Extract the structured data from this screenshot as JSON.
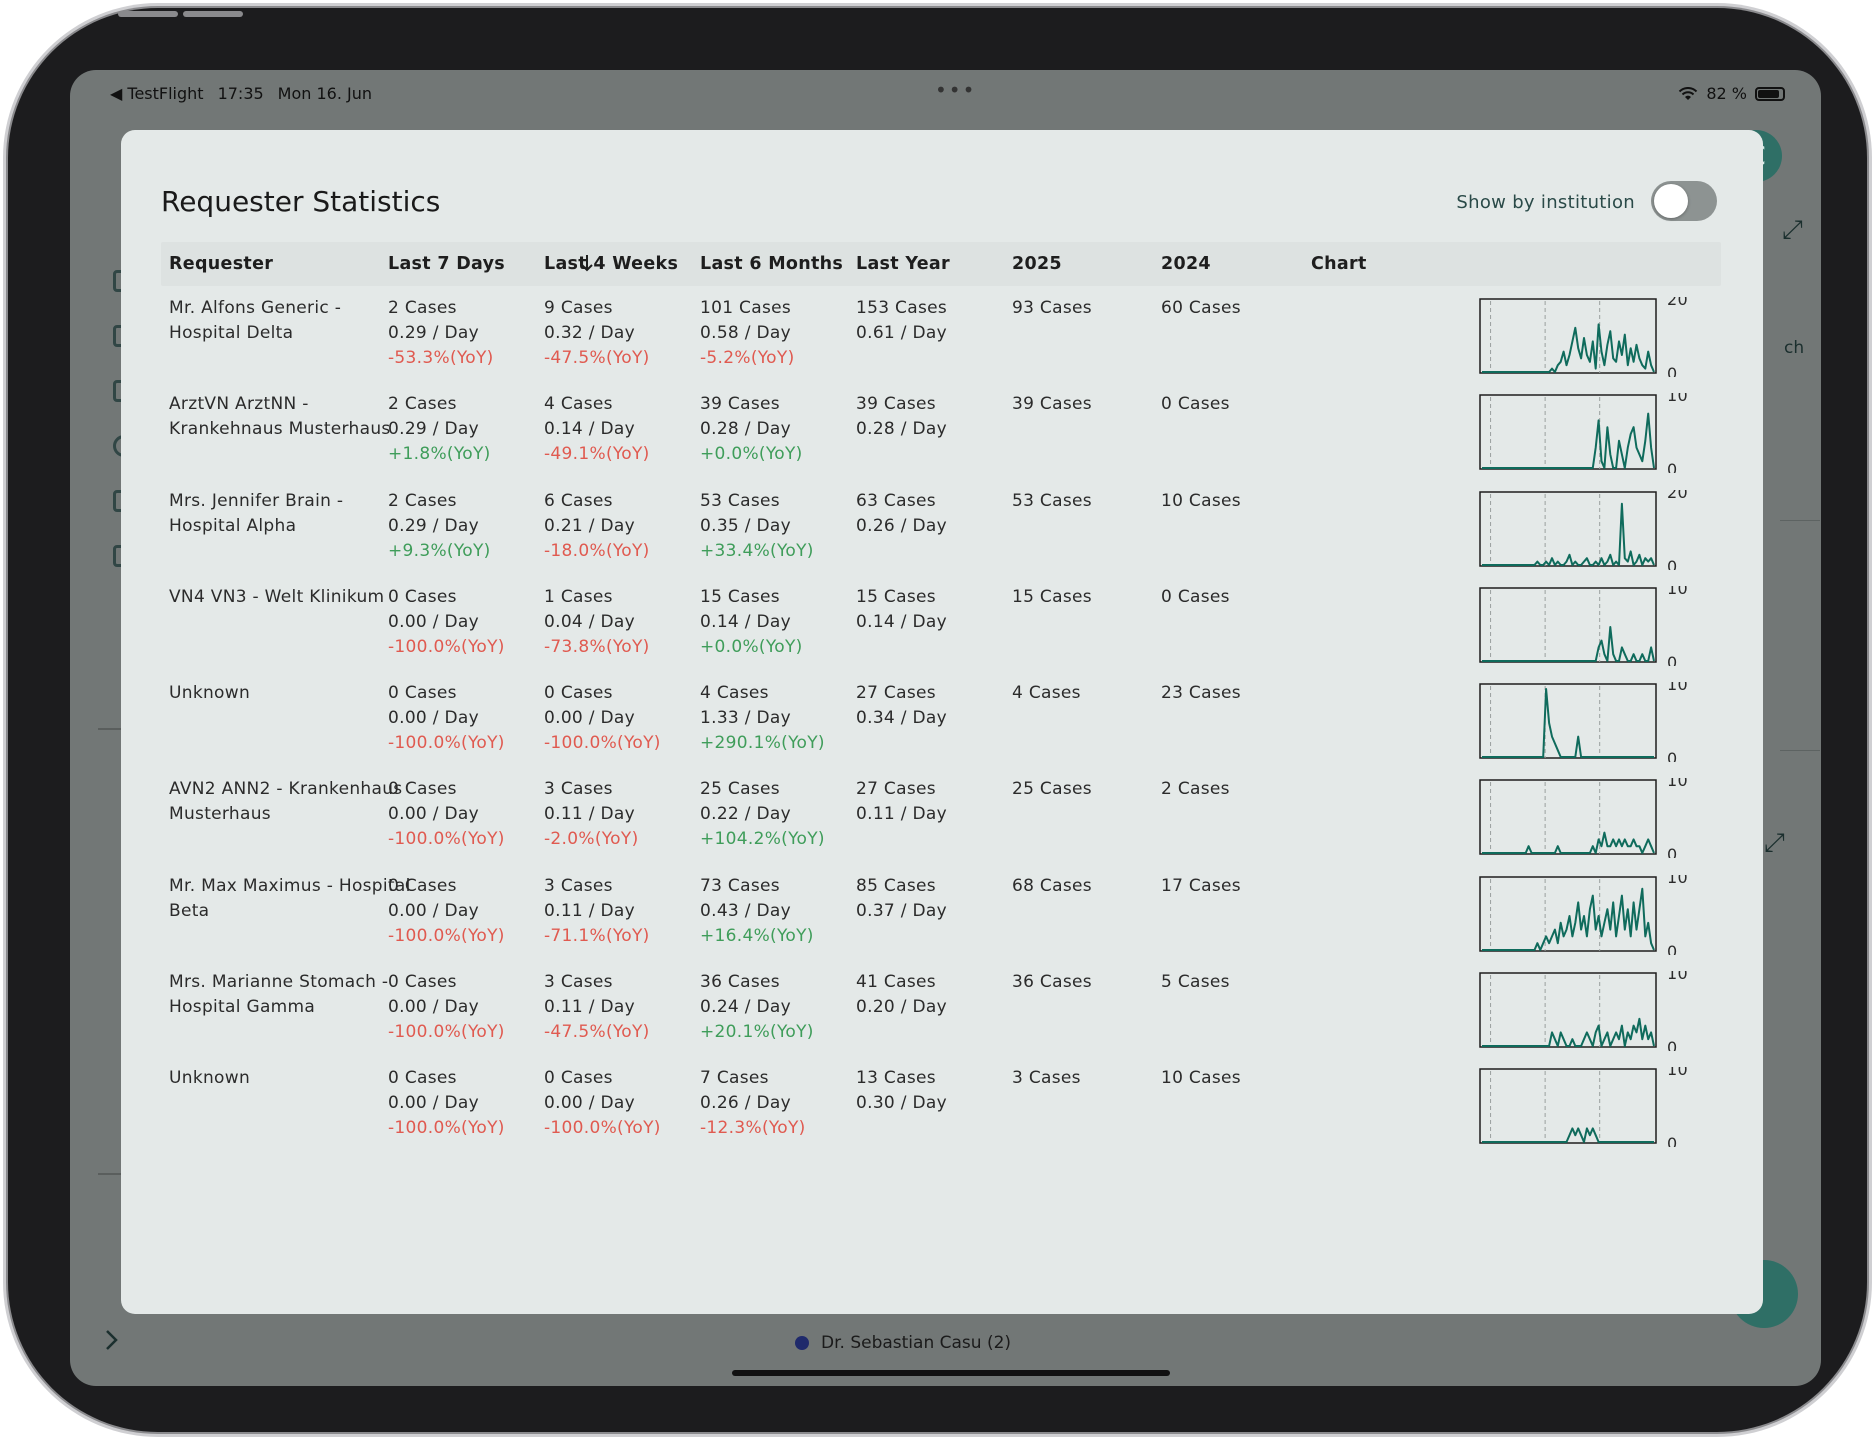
{
  "status_bar": {
    "back_app": "◀ TestFlight",
    "time": "17:35",
    "date": "Mon 16. Jun",
    "battery": "82 %"
  },
  "background": {
    "avatar_initial": "C",
    "partial_text": "ch",
    "legend_item": "Dr. Sebastian Casu (2)"
  },
  "modal": {
    "title": "Requester Statistics",
    "toggle_label": "Show by institution",
    "toggle_on": false,
    "columns": [
      "Requester",
      "Last 7 Days",
      "Last 4 Weeks",
      "Last 6 Months",
      "Last Year",
      "2025",
      "2024",
      "Chart"
    ],
    "sort_column": "Last 7 Days",
    "sort_direction": "desc",
    "rows": [
      {
        "requester": [
          "Mr. Alfons Generic -",
          "Hospital Delta"
        ],
        "d7": [
          "2 Cases",
          "0.29 / Day",
          "-53.3%(YoY)"
        ],
        "w4": [
          "9 Cases",
          "0.32 / Day",
          "-47.5%(YoY)"
        ],
        "m6": [
          "101 Cases",
          "0.58 / Day",
          "-5.2%(YoY)"
        ],
        "year": [
          "153 Cases",
          "0.61 / Day"
        ],
        "y2025": "93 Cases",
        "y2024": "60 Cases",
        "chart_max": "20",
        "chart_min": "0",
        "trend": [
          0,
          0,
          0,
          0,
          0,
          0,
          0,
          0,
          0,
          0,
          0,
          0,
          0,
          0,
          0,
          0,
          0,
          0,
          0,
          0,
          0,
          0,
          0,
          0,
          1,
          0,
          2,
          3,
          6,
          2,
          5,
          9,
          13,
          7,
          4,
          10,
          5,
          3,
          9,
          1,
          14,
          6,
          2,
          8,
          12,
          4,
          3,
          9,
          5,
          11,
          2,
          7,
          3,
          8,
          4,
          2,
          1,
          6,
          2,
          0
        ]
      },
      {
        "requester": [
          "ArztVN ArztNN -",
          "Krankehnaus Musterhaus"
        ],
        "d7": [
          "2 Cases",
          "0.29 / Day",
          "+1.8%(YoY)"
        ],
        "w4": [
          "4 Cases",
          "0.14 / Day",
          "-49.1%(YoY)"
        ],
        "m6": [
          "39 Cases",
          "0.28 / Day",
          "+0.0%(YoY)"
        ],
        "year": [
          "39 Cases",
          "0.28 / Day"
        ],
        "y2025": "39 Cases",
        "y2024": "0 Cases",
        "chart_max": "10",
        "chart_min": "0",
        "trend": [
          0,
          0,
          0,
          0,
          0,
          0,
          0,
          0,
          0,
          0,
          0,
          0,
          0,
          0,
          0,
          0,
          0,
          0,
          0,
          0,
          0,
          0,
          0,
          0,
          0,
          0,
          0,
          0,
          0,
          0,
          0,
          0,
          0,
          0,
          0,
          0,
          0,
          0,
          0,
          3,
          7,
          1,
          0,
          6,
          2,
          0,
          0,
          4,
          2,
          0,
          3,
          5,
          6,
          3,
          2,
          1,
          4,
          8,
          3,
          0
        ]
      },
      {
        "requester": [
          "Mrs. Jennifer Brain -",
          "Hospital Alpha"
        ],
        "d7": [
          "2 Cases",
          "0.29 / Day",
          "+9.3%(YoY)"
        ],
        "w4": [
          "6 Cases",
          "0.21 / Day",
          "-18.0%(YoY)"
        ],
        "m6": [
          "53 Cases",
          "0.35 / Day",
          "+33.4%(YoY)"
        ],
        "year": [
          "63 Cases",
          "0.26 / Day"
        ],
        "y2025": "53 Cases",
        "y2024": "10 Cases",
        "chart_max": "20",
        "chart_min": "0",
        "trend": [
          0,
          0,
          0,
          0,
          0,
          0,
          0,
          0,
          0,
          0,
          0,
          0,
          0,
          0,
          0,
          0,
          0,
          0,
          0,
          1,
          0,
          0,
          1,
          0,
          2,
          0,
          1,
          0,
          0,
          1,
          3,
          0,
          1,
          0,
          0,
          1,
          2,
          0,
          0,
          1,
          0,
          2,
          0,
          1,
          3,
          0,
          1,
          0,
          18,
          2,
          1,
          4,
          0,
          1,
          3,
          0,
          2,
          1,
          2,
          0
        ]
      },
      {
        "requester": [
          "VN4 VN3 - Welt Klinikum"
        ],
        "d7": [
          "0 Cases",
          "0.00 / Day",
          "-100.0%(YoY)"
        ],
        "w4": [
          "1 Cases",
          "0.04 / Day",
          "-73.8%(YoY)"
        ],
        "m6": [
          "15 Cases",
          "0.14 / Day",
          "+0.0%(YoY)"
        ],
        "year": [
          "15 Cases",
          "0.14 / Day"
        ],
        "y2025": "15 Cases",
        "y2024": "0 Cases",
        "chart_max": "10",
        "chart_min": "0",
        "trend": [
          0,
          0,
          0,
          0,
          0,
          0,
          0,
          0,
          0,
          0,
          0,
          0,
          0,
          0,
          0,
          0,
          0,
          0,
          0,
          0,
          0,
          0,
          0,
          0,
          0,
          0,
          0,
          0,
          0,
          0,
          0,
          0,
          0,
          0,
          0,
          0,
          0,
          0,
          0,
          0,
          2,
          3,
          1,
          0,
          5,
          1,
          0,
          0,
          2,
          1,
          0,
          0,
          1,
          0,
          0,
          1,
          0,
          0,
          2,
          0
        ]
      },
      {
        "requester": [
          "Unknown"
        ],
        "d7": [
          "0 Cases",
          "0.00 / Day",
          "-100.0%(YoY)"
        ],
        "w4": [
          "0 Cases",
          "0.00 / Day",
          "-100.0%(YoY)"
        ],
        "m6": [
          "4 Cases",
          "1.33 / Day",
          "+290.1%(YoY)"
        ],
        "year": [
          "27 Cases",
          "0.34 / Day"
        ],
        "y2025": "4 Cases",
        "y2024": "23 Cases",
        "chart_max": "10",
        "chart_min": "0",
        "trend": [
          0,
          0,
          0,
          0,
          0,
          0,
          0,
          0,
          0,
          0,
          0,
          0,
          0,
          0,
          0,
          0,
          0,
          0,
          0,
          0,
          0,
          0,
          10,
          5,
          3,
          2,
          1,
          0,
          0,
          0,
          0,
          0,
          0,
          3,
          0,
          0,
          0,
          0,
          0,
          0,
          0,
          0,
          0,
          0,
          0,
          0,
          0,
          0,
          0,
          0,
          0,
          0,
          0,
          0,
          0,
          0,
          0,
          0,
          0,
          0
        ]
      },
      {
        "requester": [
          "AVN2 ANN2 - Krankenhaus",
          "Musterhaus"
        ],
        "d7": [
          "0 Cases",
          "0.00 / Day",
          "-100.0%(YoY)"
        ],
        "w4": [
          "3 Cases",
          "0.11 / Day",
          "-2.0%(YoY)"
        ],
        "m6": [
          "25 Cases",
          "0.22 / Day",
          "+104.2%(YoY)"
        ],
        "year": [
          "27 Cases",
          "0.11 / Day"
        ],
        "y2025": "25 Cases",
        "y2024": "2 Cases",
        "chart_max": "10",
        "chart_min": "0",
        "trend": [
          0,
          0,
          0,
          0,
          0,
          0,
          0,
          0,
          0,
          0,
          0,
          0,
          0,
          0,
          0,
          0,
          1,
          0,
          0,
          0,
          0,
          0,
          0,
          0,
          0,
          0,
          1,
          0,
          0,
          0,
          0,
          0,
          0,
          0,
          0,
          0,
          0,
          0,
          1,
          0,
          2,
          1,
          3,
          1,
          1,
          2,
          1,
          2,
          1,
          2,
          1,
          1,
          2,
          1,
          1,
          0,
          1,
          2,
          1,
          0
        ]
      },
      {
        "requester": [
          "Mr. Max Maximus - Hospital",
          "Beta"
        ],
        "d7": [
          "0 Cases",
          "0.00 / Day",
          "-100.0%(YoY)"
        ],
        "w4": [
          "3 Cases",
          "0.11 / Day",
          "-71.1%(YoY)"
        ],
        "m6": [
          "73 Cases",
          "0.43 / Day",
          "+16.4%(YoY)"
        ],
        "year": [
          "85 Cases",
          "0.37 / Day"
        ],
        "y2025": "68 Cases",
        "y2024": "17 Cases",
        "chart_max": "10",
        "chart_min": "0",
        "trend": [
          0,
          0,
          0,
          0,
          0,
          0,
          0,
          0,
          0,
          0,
          0,
          0,
          0,
          0,
          0,
          0,
          0,
          0,
          0,
          1,
          0,
          1,
          2,
          1,
          2,
          3,
          1,
          4,
          2,
          3,
          5,
          2,
          4,
          7,
          3,
          5,
          2,
          6,
          8,
          3,
          5,
          2,
          4,
          6,
          3,
          7,
          2,
          5,
          8,
          3,
          6,
          2,
          7,
          3,
          6,
          9,
          2,
          4,
          1,
          0
        ]
      },
      {
        "requester": [
          "Mrs. Marianne Stomach -",
          "Hospital Gamma"
        ],
        "d7": [
          "0 Cases",
          "0.00 / Day",
          "-100.0%(YoY)"
        ],
        "w4": [
          "3 Cases",
          "0.11 / Day",
          "-47.5%(YoY)"
        ],
        "m6": [
          "36 Cases",
          "0.24 / Day",
          "+20.1%(YoY)"
        ],
        "year": [
          "41 Cases",
          "0.20 / Day"
        ],
        "y2025": "36 Cases",
        "y2024": "5 Cases",
        "chart_max": "10",
        "chart_min": "0",
        "trend": [
          0,
          0,
          0,
          0,
          0,
          0,
          0,
          0,
          0,
          0,
          0,
          0,
          0,
          0,
          0,
          0,
          0,
          0,
          0,
          0,
          0,
          0,
          0,
          0,
          2,
          1,
          0,
          2,
          1,
          0,
          0,
          1,
          0,
          0,
          0,
          1,
          2,
          1,
          0,
          2,
          3,
          0,
          1,
          2,
          0,
          1,
          2,
          1,
          3,
          0,
          2,
          1,
          3,
          2,
          4,
          1,
          3,
          1,
          2,
          0
        ]
      },
      {
        "requester": [
          "Unknown"
        ],
        "d7": [
          "0 Cases",
          "0.00 / Day",
          "-100.0%(YoY)"
        ],
        "w4": [
          "0 Cases",
          "0.00 / Day",
          "-100.0%(YoY)"
        ],
        "m6": [
          "7 Cases",
          "0.26 / Day",
          "-12.3%(YoY)"
        ],
        "year": [
          "13 Cases",
          "0.30 / Day"
        ],
        "y2025": "3 Cases",
        "y2024": "10 Cases",
        "chart_max": "10",
        "chart_min": "0",
        "trend": [
          0,
          0,
          0,
          0,
          0,
          0,
          0,
          0,
          0,
          0,
          0,
          0,
          0,
          0,
          0,
          0,
          0,
          0,
          0,
          0,
          0,
          0,
          0,
          0,
          0,
          0,
          0,
          0,
          0,
          0,
          1,
          2,
          1,
          2,
          1,
          0,
          2,
          1,
          2,
          1,
          0,
          0,
          0,
          0,
          0,
          0,
          0,
          0,
          0,
          0,
          0,
          0,
          0,
          0,
          0,
          0,
          0,
          0,
          0,
          0
        ]
      }
    ]
  }
}
